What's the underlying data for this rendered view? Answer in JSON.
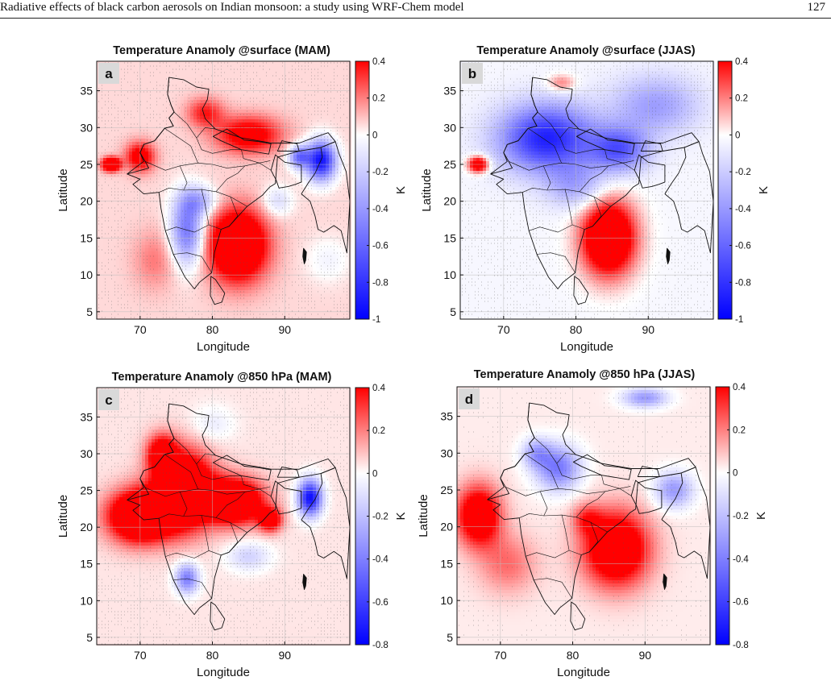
{
  "running_head": {
    "title": "Radiative effects of black carbon aerosols on Indian monsoon: a study using WRF-Chem model",
    "page_number": "127"
  },
  "chart_data": [
    {
      "type": "heatmap",
      "panel": "a",
      "title": "Temperature Anamoly @surface (MAM)",
      "xlabel": "Longitude",
      "ylabel": "Latitude",
      "x_ticks": [
        "70",
        "80",
        "90"
      ],
      "y_ticks": [
        "35",
        "30",
        "25",
        "20",
        "15",
        "10",
        "5"
      ],
      "xlim": [
        64,
        99
      ],
      "ylim": [
        4,
        39
      ],
      "colorbar": {
        "label": "K",
        "range": [
          -1,
          0.4
        ],
        "ticks": [
          "0.4",
          "0.2",
          "0",
          "-0.2",
          "-0.4",
          "-0.6",
          "-0.8",
          "-1"
        ]
      },
      "features": [
        {
          "lon": 68,
          "lat": 25,
          "value": 0.35
        },
        {
          "lon": 85,
          "lat": 14,
          "value": 0.3
        },
        {
          "lon": 84,
          "lat": 29,
          "value": 0.2
        },
        {
          "lon": 77,
          "lat": 16,
          "value": -0.45
        },
        {
          "lon": 95,
          "lat": 25.5,
          "value": -0.8
        },
        {
          "lon": 72,
          "lat": 12,
          "value": 0.1
        }
      ]
    },
    {
      "type": "heatmap",
      "panel": "b",
      "title": "Temperature Anamoly @surface (JJAS)",
      "xlabel": "Longitude",
      "ylabel": "Latitude",
      "x_ticks": [
        "70",
        "80",
        "90"
      ],
      "y_ticks": [
        "35",
        "30",
        "25",
        "20",
        "15",
        "10",
        "5"
      ],
      "xlim": [
        64,
        99
      ],
      "ylim": [
        4,
        39
      ],
      "colorbar": {
        "label": "K",
        "range": [
          -1,
          0.4
        ],
        "ticks": [
          "0.4",
          "0.2",
          "0",
          "-0.2",
          "-0.4",
          "-0.6",
          "-0.8",
          "-1"
        ]
      },
      "features": [
        {
          "lon": 77,
          "lat": 28,
          "value": -0.55
        },
        {
          "lon": 85,
          "lat": 15,
          "value": 0.3
        },
        {
          "lon": 66,
          "lat": 25,
          "value": 0.25
        },
        {
          "lon": 92,
          "lat": 33,
          "value": -0.2
        }
      ]
    },
    {
      "type": "heatmap",
      "panel": "c",
      "title": "Temperature Anamoly @850 hPa (MAM)",
      "xlabel": "Longitude",
      "ylabel": "Latitude",
      "x_ticks": [
        "70",
        "80",
        "90"
      ],
      "y_ticks": [
        "35",
        "30",
        "25",
        "20",
        "15",
        "10",
        "5"
      ],
      "xlim": [
        64,
        99
      ],
      "ylim": [
        4,
        39
      ],
      "colorbar": {
        "label": "K",
        "range": [
          -0.8,
          0.4
        ],
        "ticks": [
          "0.4",
          "0.2",
          "0",
          "-0.2",
          "-0.4",
          "-0.6",
          "-0.8"
        ]
      },
      "features": [
        {
          "lon": 74,
          "lat": 24,
          "value": 0.35
        },
        {
          "lon": 83,
          "lat": 23,
          "value": 0.3
        },
        {
          "lon": 93,
          "lat": 24,
          "value": -0.5
        },
        {
          "lon": 76,
          "lat": 14,
          "value": -0.25
        }
      ]
    },
    {
      "type": "heatmap",
      "panel": "d",
      "title": "Temperature Anamoly @850 hPa (JJAS)",
      "xlabel": "Longitude",
      "ylabel": "Latitude",
      "x_ticks": [
        "70",
        "80",
        "90"
      ],
      "y_ticks": [
        "35",
        "30",
        "25",
        "20",
        "15",
        "10",
        "5"
      ],
      "xlim": [
        64,
        99
      ],
      "ylim": [
        4,
        39
      ],
      "colorbar": {
        "label": "K",
        "range": [
          -0.8,
          0.4
        ],
        "ticks": [
          "0.4",
          "0.2",
          "0",
          "-0.2",
          "-0.4",
          "-0.6",
          "-0.8"
        ]
      },
      "features": [
        {
          "lon": 86,
          "lat": 17,
          "value": 0.3
        },
        {
          "lon": 67,
          "lat": 21,
          "value": 0.25
        },
        {
          "lon": 78,
          "lat": 28,
          "value": -0.25
        },
        {
          "lon": 94,
          "lat": 25,
          "value": -0.2
        }
      ]
    }
  ]
}
